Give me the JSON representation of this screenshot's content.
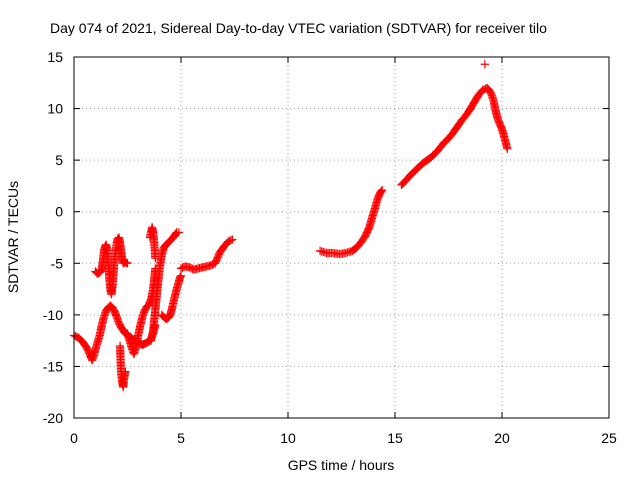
{
  "chart_data": {
    "type": "scatter",
    "title": "Day 074 of 2021, Sidereal Day-to-day VTEC variation (SDTVAR) for receiver tilo",
    "xlabel": "GPS time / hours",
    "ylabel": "SDTVAR / TECUs",
    "xlim": [
      0,
      25
    ],
    "ylim": [
      -20,
      15
    ],
    "xticks": [
      0,
      5,
      10,
      15,
      20,
      25
    ],
    "yticks": [
      -20,
      -15,
      -10,
      -5,
      0,
      5,
      10,
      15
    ],
    "grid": true,
    "marker": "+",
    "color": "#ff0000",
    "series": [
      {
        "segments": [
          [
            [
              0.0,
              -12.0
            ],
            [
              0.2,
              -12.2
            ],
            [
              0.4,
              -12.6
            ],
            [
              0.6,
              -13.2
            ],
            [
              0.75,
              -13.9
            ],
            [
              0.85,
              -14.4
            ],
            [
              0.95,
              -13.8
            ],
            [
              1.05,
              -13.0
            ],
            [
              1.2,
              -12.0
            ],
            [
              1.3,
              -11.0
            ],
            [
              1.4,
              -10.2
            ],
            [
              1.5,
              -9.6
            ],
            [
              1.6,
              -9.3
            ],
            [
              1.7,
              -9.1
            ],
            [
              1.8,
              -9.3
            ],
            [
              1.9,
              -9.7
            ],
            [
              2.0,
              -10.2
            ],
            [
              2.1,
              -10.8
            ],
            [
              2.2,
              -11.2
            ],
            [
              2.3,
              -11.5
            ],
            [
              2.4,
              -11.8
            ],
            [
              2.5,
              -12.0
            ],
            [
              2.6,
              -12.1
            ],
            [
              2.7,
              -12.3
            ],
            [
              2.8,
              -12.4
            ],
            [
              2.9,
              -12.5
            ],
            [
              3.0,
              -12.6
            ],
            [
              3.1,
              -12.8
            ],
            [
              3.2,
              -12.9
            ],
            [
              3.3,
              -12.8
            ],
            [
              3.4,
              -12.7
            ],
            [
              3.5,
              -12.6
            ],
            [
              3.6,
              -12.3
            ],
            [
              3.7,
              -11.8
            ],
            [
              3.8,
              -11.0
            ]
          ],
          [
            [
              1.0,
              -5.8
            ],
            [
              1.1,
              -6.0
            ],
            [
              1.2,
              -5.9
            ],
            [
              1.3,
              -5.6
            ],
            [
              1.35,
              -4.8
            ],
            [
              1.4,
              -3.8
            ],
            [
              1.45,
              -3.4
            ],
            [
              1.5,
              -3.2
            ],
            [
              1.55,
              -3.6
            ],
            [
              1.6,
              -4.8
            ],
            [
              1.65,
              -6.5
            ],
            [
              1.7,
              -7.5
            ],
            [
              1.75,
              -8.0
            ],
            [
              1.8,
              -7.2
            ],
            [
              1.9,
              -4.5
            ],
            [
              2.0,
              -3.0
            ],
            [
              2.05,
              -2.6
            ],
            [
              2.1,
              -2.5
            ],
            [
              2.15,
              -3.0
            ],
            [
              2.2,
              -3.8
            ],
            [
              2.25,
              -4.6
            ],
            [
              2.3,
              -5.0
            ],
            [
              2.4,
              -4.9
            ],
            [
              2.5,
              -5.0
            ]
          ],
          [
            [
              2.15,
              -13.0
            ],
            [
              2.2,
              -15.5
            ],
            [
              2.25,
              -16.5
            ],
            [
              2.3,
              -17.0
            ],
            [
              2.35,
              -16.0
            ],
            [
              2.4,
              -15.5
            ]
          ],
          [
            [
              2.5,
              -11.8
            ],
            [
              2.6,
              -12.5
            ],
            [
              2.7,
              -13.2
            ],
            [
              2.8,
              -13.8
            ],
            [
              2.9,
              -13.2
            ],
            [
              3.0,
              -12.0
            ],
            [
              3.1,
              -11.0
            ],
            [
              3.2,
              -10.2
            ],
            [
              3.3,
              -9.6
            ],
            [
              3.4,
              -9.2
            ],
            [
              3.5,
              -9.0
            ],
            [
              3.6,
              -8.5
            ],
            [
              3.7,
              -7.5
            ],
            [
              3.8,
              -5.5
            ]
          ],
          [
            [
              3.55,
              -2.5
            ],
            [
              3.65,
              -1.5
            ],
            [
              3.7,
              -2.0
            ],
            [
              3.75,
              -3.0
            ],
            [
              3.8,
              -4.5
            ]
          ],
          [
            [
              3.6,
              -12.5
            ],
            [
              3.7,
              -11.5
            ],
            [
              3.8,
              -9.5
            ],
            [
              3.9,
              -7.5
            ],
            [
              4.0,
              -5.5
            ],
            [
              4.1,
              -4.2
            ],
            [
              4.2,
              -3.5
            ],
            [
              4.3,
              -3.2
            ],
            [
              4.4,
              -3.0
            ],
            [
              4.5,
              -2.8
            ],
            [
              4.6,
              -2.6
            ],
            [
              4.7,
              -2.3
            ],
            [
              4.8,
              -2.0
            ],
            [
              4.9,
              -2.0
            ]
          ],
          [
            [
              4.1,
              -10.0
            ],
            [
              4.2,
              -10.2
            ],
            [
              4.3,
              -10.4
            ],
            [
              4.4,
              -10.3
            ],
            [
              4.5,
              -10.0
            ],
            [
              4.6,
              -9.2
            ],
            [
              4.7,
              -8.3
            ],
            [
              4.8,
              -7.5
            ],
            [
              4.9,
              -6.8
            ],
            [
              4.95,
              -6.4
            ],
            [
              5.0,
              -6.2
            ]
          ],
          [
            [
              5.0,
              -5.5
            ],
            [
              5.2,
              -5.3
            ],
            [
              5.4,
              -5.4
            ],
            [
              5.6,
              -5.6
            ],
            [
              5.8,
              -5.5
            ],
            [
              6.0,
              -5.4
            ],
            [
              6.2,
              -5.3
            ],
            [
              6.4,
              -5.2
            ],
            [
              6.6,
              -5.0
            ],
            [
              6.8,
              -4.0
            ],
            [
              7.0,
              -3.4
            ],
            [
              7.2,
              -2.9
            ],
            [
              7.4,
              -2.7
            ]
          ],
          [
            [
              11.5,
              -3.8
            ],
            [
              11.8,
              -4.0
            ],
            [
              12.1,
              -4.0
            ],
            [
              12.4,
              -4.1
            ],
            [
              12.7,
              -4.0
            ],
            [
              13.0,
              -3.8
            ],
            [
              13.2,
              -3.5
            ],
            [
              13.4,
              -3.0
            ],
            [
              13.6,
              -2.4
            ],
            [
              13.8,
              -1.5
            ],
            [
              13.9,
              -0.8
            ],
            [
              14.0,
              -0.1
            ],
            [
              14.1,
              0.6
            ],
            [
              14.2,
              1.3
            ],
            [
              14.3,
              1.8
            ],
            [
              14.4,
              2.1
            ]
          ],
          [
            [
              15.3,
              2.6
            ],
            [
              15.5,
              3.0
            ],
            [
              15.7,
              3.5
            ],
            [
              15.9,
              3.9
            ],
            [
              16.1,
              4.3
            ],
            [
              16.3,
              4.7
            ],
            [
              16.5,
              5.0
            ],
            [
              16.7,
              5.3
            ],
            [
              16.9,
              5.7
            ],
            [
              17.1,
              6.2
            ],
            [
              17.3,
              6.7
            ],
            [
              17.5,
              7.1
            ],
            [
              17.7,
              7.6
            ],
            [
              17.9,
              8.2
            ],
            [
              18.1,
              8.8
            ],
            [
              18.3,
              9.3
            ],
            [
              18.5,
              9.9
            ],
            [
              18.7,
              10.6
            ],
            [
              18.9,
              11.3
            ],
            [
              19.1,
              11.8
            ],
            [
              19.3,
              12.0
            ],
            [
              19.4,
              11.8
            ],
            [
              19.5,
              11.4
            ],
            [
              19.6,
              10.8
            ],
            [
              19.7,
              9.8
            ],
            [
              19.8,
              9.0
            ],
            [
              19.9,
              8.5
            ],
            [
              20.0,
              8.0
            ],
            [
              20.1,
              7.3
            ],
            [
              20.2,
              6.5
            ],
            [
              20.25,
              6.1
            ]
          ]
        ],
        "isolated": [
          [
            19.2,
            14.3
          ]
        ]
      }
    ]
  }
}
